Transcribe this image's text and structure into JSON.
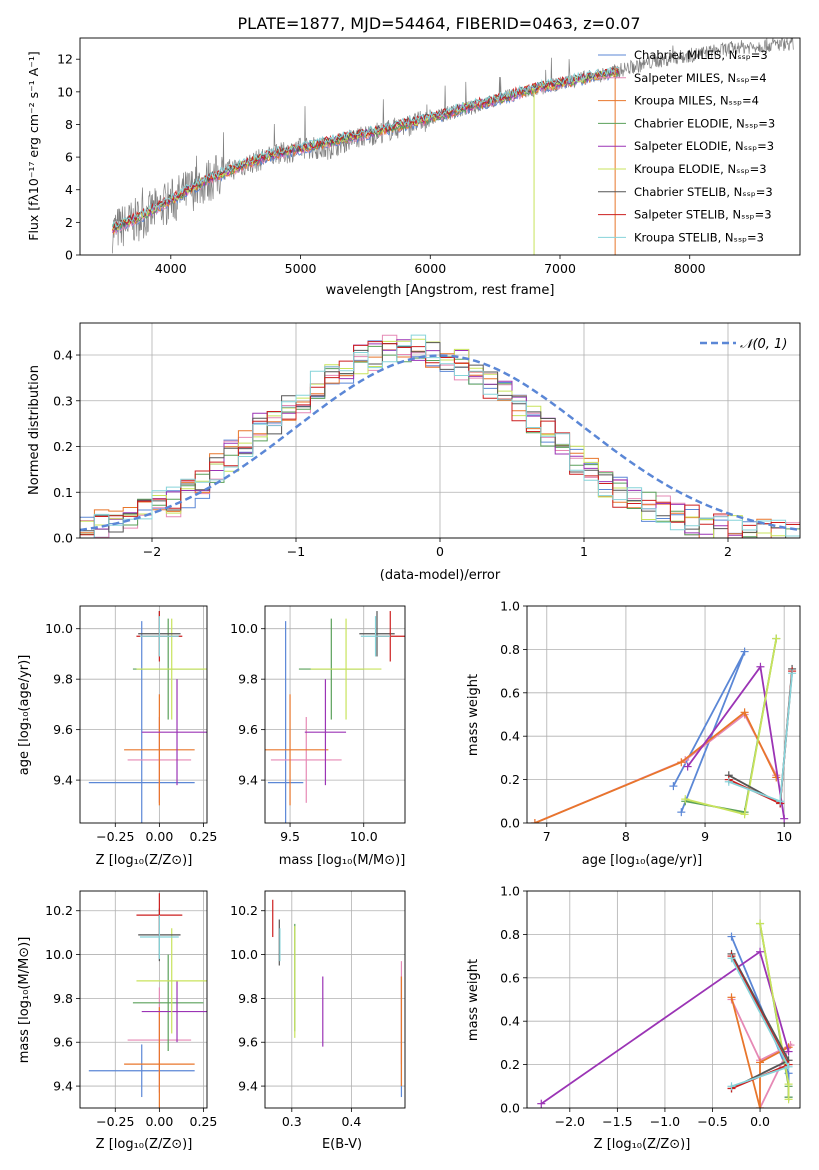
{
  "colors": {
    "chabrier_miles": "#5b87d6",
    "salpeter_miles": "#e689b5",
    "kroupa_miles": "#e8762b",
    "chabrier_elodie": "#5aa05a",
    "salpeter_elodie": "#9b34b5",
    "kroupa_elodie": "#c8e35c",
    "chabrier_stelib": "#555555",
    "salpeter_stelib": "#cc1f1f",
    "kroupa_stelib": "#86d3d9",
    "data": "#808080",
    "normal": "#5b87d6",
    "grid": "#b0b0b0"
  },
  "chart_data": [
    {
      "type": "line",
      "title": "PLATE=1877, MJD=54464, FIBERID=0463, z=0.07",
      "xlabel": "wavelength [Angstrom, rest frame]",
      "ylabel": "Flux [fλ10⁻¹⁷ erg cm⁻² s⁻¹ A⁻¹]",
      "xlim": [
        3300,
        8850
      ],
      "ylim": [
        0,
        13.3
      ],
      "xticks": [
        4000,
        5000,
        6000,
        7000,
        8000
      ],
      "yticks": [
        0,
        2,
        4,
        6,
        8,
        10,
        12
      ],
      "grid": false,
      "legend_position": "right",
      "legend": [
        "Chabrier MILES, Nₛₛₚ=3",
        "Salpeter MILES, Nₛₛₚ=4",
        "Kroupa MILES, Nₛₛₚ=4",
        "Chabrier ELODIE, Nₛₛₚ=3",
        "Salpeter ELODIE, Nₛₛₚ=3",
        "Kroupa ELODIE, Nₛₛₚ=3",
        "Chabrier STELIB, Nₛₛₚ=3",
        "Salpeter STELIB, Nₛₛₚ=3",
        "Kroupa STELIB, Nₛₛₚ=3"
      ],
      "data_x": [
        3550,
        3700,
        3850,
        4000,
        4150,
        4300,
        4450,
        4600,
        4750,
        4900,
        5050,
        5200,
        5350,
        5500,
        5650,
        5800,
        5950,
        6100,
        6250,
        6400,
        6550,
        6700,
        6850,
        7000,
        7150,
        7300,
        7450,
        7600,
        7750,
        7900,
        8050,
        8200,
        8350,
        8500,
        8650,
        8800
      ],
      "data_y": [
        1.5,
        2.0,
        2.6,
        3.3,
        4.0,
        4.6,
        5.2,
        5.6,
        6.0,
        6.3,
        6.6,
        6.5,
        7.0,
        7.3,
        7.6,
        7.9,
        8.2,
        8.6,
        8.9,
        9.2,
        9.6,
        9.9,
        10.2,
        10.5,
        10.8,
        11.0,
        11.3,
        11.6,
        11.9,
        12.1,
        12.3,
        12.5,
        12.7,
        12.8,
        12.9,
        13.0
      ],
      "model_x": [
        3550,
        3800,
        4050,
        4300,
        4550,
        4800,
        5050,
        5300,
        5550,
        5800,
        6050,
        6300,
        6550,
        6800,
        7050,
        7300,
        7450
      ],
      "model_y": [
        1.6,
        2.5,
        3.6,
        4.7,
        5.5,
        6.2,
        6.6,
        7.1,
        7.5,
        8.0,
        8.5,
        9.1,
        9.6,
        10.2,
        10.6,
        11.0,
        11.2
      ]
    },
    {
      "type": "line",
      "title": "",
      "xlabel": "(data-model)/error",
      "ylabel": "Normed distribution",
      "xlim": [
        -2.5,
        2.5
      ],
      "ylim": [
        0,
        0.47
      ],
      "xticks": [
        -2,
        -1,
        0,
        1,
        2
      ],
      "yticks": [
        0.0,
        0.1,
        0.2,
        0.3,
        0.4
      ],
      "grid": true,
      "legend_position": "top-right",
      "legend": [
        "𝒩(0, 1)"
      ]
    },
    {
      "type": "scatter",
      "xlabel": "Z [log₁₀(Z/Z⊙)]",
      "ylabel": "age  [log₁₀(age/yr)]",
      "xlim": [
        -0.45,
        0.27
      ],
      "ylim": [
        9.23,
        10.09
      ],
      "xticks": [
        -0.25,
        0.0,
        0.25
      ],
      "yticks": [
        9.4,
        9.6,
        9.8,
        10.0
      ],
      "grid": true
    },
    {
      "type": "scatter",
      "xlabel": "mass [log₁₀(M/M⊙)]",
      "ylabel": "",
      "xlim": [
        9.33,
        10.28
      ],
      "ylim": [
        9.23,
        10.09
      ],
      "xticks": [
        9.5,
        10.0
      ],
      "yticks": [
        9.4,
        9.6,
        9.8,
        10.0
      ],
      "grid": true
    },
    {
      "type": "line",
      "xlabel": "age  [log₁₀(age/yr)]",
      "ylabel": "mass weight",
      "xlim": [
        6.75,
        10.2
      ],
      "ylim": [
        0,
        1.0
      ],
      "xticks": [
        7,
        8,
        9,
        10
      ],
      "yticks": [
        0.0,
        0.2,
        0.4,
        0.6,
        0.8,
        1.0
      ],
      "grid": true
    },
    {
      "type": "scatter",
      "xlabel": "Z [log₁₀(Z/Z⊙)]",
      "ylabel": "mass [log₁₀(M/M⊙)]",
      "xlim": [
        -0.45,
        0.27
      ],
      "ylim": [
        9.3,
        10.29
      ],
      "xticks": [
        -0.25,
        0.0,
        0.25
      ],
      "yticks": [
        9.4,
        9.6,
        9.8,
        10.0,
        10.2
      ],
      "grid": true
    },
    {
      "type": "scatter",
      "xlabel": "E(B-V)",
      "ylabel": "",
      "xlim": [
        0.255,
        0.49
      ],
      "ylim": [
        9.3,
        10.29
      ],
      "xticks": [
        0.3,
        0.4
      ],
      "yticks": [
        9.4,
        9.6,
        9.8,
        10.0,
        10.2
      ],
      "grid": true
    },
    {
      "type": "line",
      "xlabel": "Z [log₁₀(Z/Z⊙)]",
      "ylabel": "mass weight",
      "xlim": [
        -2.45,
        0.42
      ],
      "ylim": [
        0,
        1.0
      ],
      "xticks": [
        -2.0,
        -1.5,
        -1.0,
        -0.5,
        0.0
      ],
      "yticks": [
        0.0,
        0.2,
        0.4,
        0.6,
        0.8,
        1.0
      ],
      "grid": true
    }
  ],
  "models": [
    {
      "key": "chabrier_miles",
      "Z": -0.1,
      "Zerr": 0.3,
      "age": 9.39,
      "ageErr": 0.64,
      "mass": 9.47,
      "massErr": 0.12,
      "ebv": 0.484,
      "ebvLow": 9.35,
      "ebvHigh": 9.9,
      "agePts": [
        [
          8.7,
          0.05
        ],
        [
          9.5,
          0.79
        ],
        [
          8.6,
          0.17
        ]
      ],
      "zPts": [
        [
          -0.3,
          0.79
        ],
        [
          0.3,
          0.16
        ],
        [
          0.3,
          0.05
        ]
      ]
    },
    {
      "key": "salpeter_miles",
      "Z": 0.0,
      "Zerr": 0.18,
      "age": 9.48,
      "ageErr": 0.17,
      "mass": 9.61,
      "massErr": 0.24,
      "ebv": 0.484,
      "ebvLow": 9.5,
      "ebvHigh": 9.97,
      "agePts": [
        [
          6.85,
          0.0
        ],
        [
          8.75,
          0.29
        ],
        [
          9.5,
          0.5
        ],
        [
          9.9,
          0.22
        ]
      ],
      "zPts": [
        [
          -0.3,
          0.5
        ],
        [
          0.0,
          0.22
        ],
        [
          0.32,
          0.29
        ],
        [
          0.0,
          0.0
        ]
      ]
    },
    {
      "key": "kroupa_miles",
      "Z": 0.0,
      "Zerr": 0.2,
      "age": 9.52,
      "ageErr": 0.22,
      "mass": 9.5,
      "massErr": 0.26,
      "ebv": 0.484,
      "ebvLow": 9.4,
      "ebvHigh": 9.9,
      "agePts": [
        [
          6.85,
          0.0
        ],
        [
          8.7,
          0.28
        ],
        [
          9.5,
          0.51
        ],
        [
          9.9,
          0.21
        ]
      ],
      "zPts": [
        [
          -0.3,
          0.51
        ],
        [
          0.0,
          0.0
        ],
        [
          0.0,
          0.21
        ],
        [
          0.3,
          0.28
        ]
      ]
    },
    {
      "key": "chabrier_elodie",
      "Z": 0.05,
      "Zerr": 0.2,
      "age": 9.84,
      "ageErr": 0.2,
      "mass": 9.78,
      "massErr": 0.22,
      "ebv": 0.305,
      "ebvLow": 9.65,
      "ebvHigh": 10.14,
      "agePts": [
        [
          8.75,
          0.1
        ],
        [
          9.5,
          0.05
        ],
        [
          9.9,
          0.85
        ]
      ],
      "zPts": [
        [
          0.0,
          0.85
        ],
        [
          0.3,
          0.1
        ],
        [
          0.3,
          0.05
        ]
      ]
    },
    {
      "key": "salpeter_elodie",
      "Z": 0.1,
      "Zerr": 0.2,
      "age": 9.59,
      "ageErr": 0.21,
      "mass": 9.74,
      "massErr": 0.14,
      "ebv": 0.352,
      "ebvLow": 9.58,
      "ebvHigh": 9.9,
      "agePts": [
        [
          8.78,
          0.26
        ],
        [
          9.7,
          0.72
        ],
        [
          10.0,
          0.02
        ]
      ],
      "zPts": [
        [
          -2.3,
          0.02
        ],
        [
          0.0,
          0.72
        ],
        [
          0.3,
          0.26
        ]
      ]
    },
    {
      "key": "kroupa_elodie",
      "Z": 0.07,
      "Zerr": 0.2,
      "age": 9.84,
      "ageErr": 0.2,
      "mass": 9.88,
      "massErr": 0.24,
      "ebv": 0.305,
      "ebvLow": 9.62,
      "ebvHigh": 10.13,
      "agePts": [
        [
          8.75,
          0.11
        ],
        [
          9.5,
          0.04
        ],
        [
          9.9,
          0.85
        ]
      ],
      "zPts": [
        [
          0.0,
          0.85
        ],
        [
          0.3,
          0.11
        ],
        [
          0.3,
          0.04
        ]
      ]
    },
    {
      "key": "chabrier_stelib",
      "Z": 0.0,
      "Zerr": 0.12,
      "age": 9.98,
      "ageErr": 0.09,
      "mass": 10.09,
      "massErr": 0.12,
      "ebv": 0.279,
      "ebvLow": 9.95,
      "ebvHigh": 10.16,
      "agePts": [
        [
          9.3,
          0.22
        ],
        [
          9.95,
          0.09
        ],
        [
          10.1,
          0.71
        ]
      ],
      "zPts": [
        [
          -0.3,
          0.71
        ],
        [
          0.3,
          0.22
        ],
        [
          -0.3,
          0.09
        ]
      ]
    },
    {
      "key": "salpeter_stelib",
      "Z": 0.0,
      "Zerr": 0.13,
      "age": 9.97,
      "ageErr": 0.1,
      "mass": 10.18,
      "massErr": 0.1,
      "ebv": 0.268,
      "ebvLow": 10.08,
      "ebvHigh": 10.25,
      "agePts": [
        [
          9.3,
          0.2
        ],
        [
          9.95,
          0.09
        ],
        [
          10.1,
          0.7
        ]
      ],
      "zPts": [
        [
          -0.3,
          0.7
        ],
        [
          0.3,
          0.2
        ],
        [
          -0.3,
          0.09
        ]
      ]
    },
    {
      "key": "kroupa_stelib",
      "Z": 0.0,
      "Zerr": 0.11,
      "age": 9.97,
      "ageErr": 0.08,
      "mass": 10.08,
      "massErr": 0.1,
      "ebv": 0.28,
      "ebvLow": 9.97,
      "ebvHigh": 10.12,
      "agePts": [
        [
          9.3,
          0.19
        ],
        [
          9.95,
          0.1
        ],
        [
          10.1,
          0.69
        ]
      ],
      "zPts": [
        [
          -0.3,
          0.69
        ],
        [
          0.3,
          0.19
        ],
        [
          -0.3,
          0.1
        ]
      ]
    }
  ],
  "hist": {
    "bins_start": -2.5,
    "bin_width": 0.1,
    "base": [
      0.02,
      0.03,
      0.04,
      0.05,
      0.06,
      0.07,
      0.08,
      0.1,
      0.12,
      0.15,
      0.18,
      0.21,
      0.24,
      0.26,
      0.28,
      0.3,
      0.33,
      0.35,
      0.37,
      0.39,
      0.4,
      0.41,
      0.41,
      0.41,
      0.4,
      0.39,
      0.38,
      0.36,
      0.34,
      0.32,
      0.29,
      0.26,
      0.23,
      0.2,
      0.17,
      0.14,
      0.12,
      0.1,
      0.08,
      0.07,
      0.06,
      0.05,
      0.04,
      0.03,
      0.025,
      0.02,
      0.015,
      0.012,
      0.01,
      0.008
    ]
  }
}
